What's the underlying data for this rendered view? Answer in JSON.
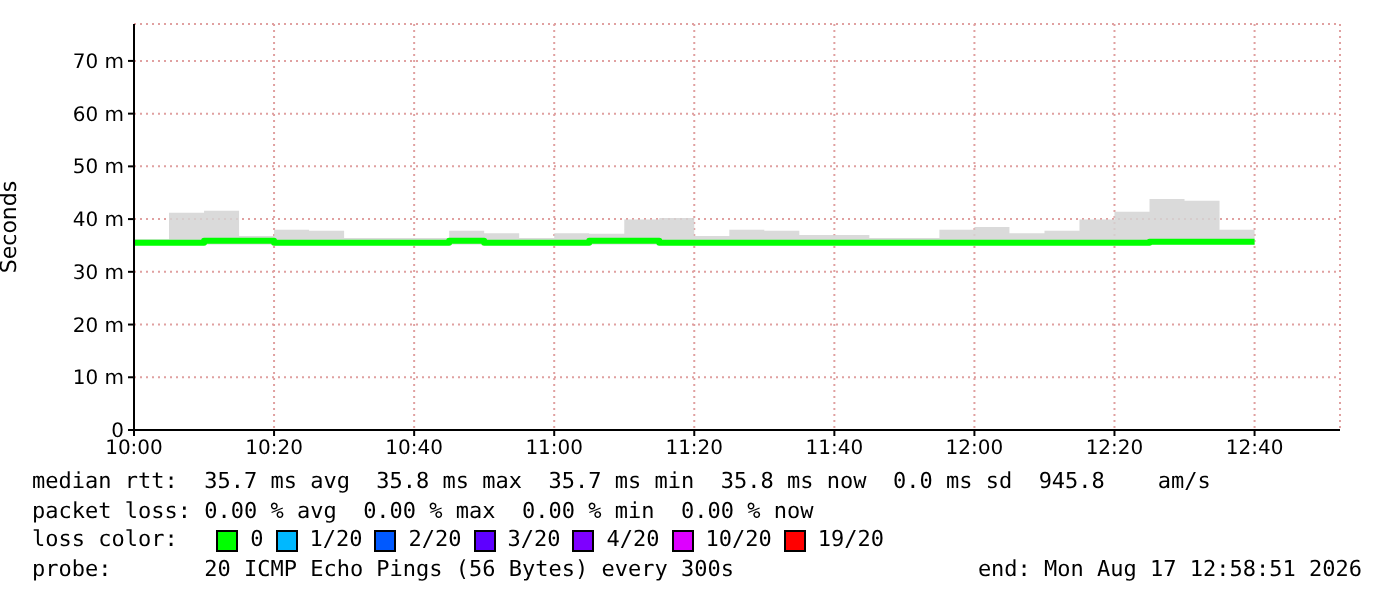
{
  "chart_data": {
    "type": "step",
    "ylabel": "Seconds",
    "x": [
      10,
      10.0833,
      10.1667,
      10.25,
      10.3333,
      10.4167,
      10.5,
      10.5833,
      10.6667,
      10.75,
      10.8333,
      10.9167,
      11,
      11.0833,
      11.1667,
      11.25,
      11.3333,
      11.4167,
      11.5,
      11.5833,
      11.6667,
      11.75,
      11.8333,
      11.9167,
      12,
      12.0833,
      12.1667,
      12.25,
      12.3333,
      12.4167,
      12.5,
      12.5833,
      12.6667
    ],
    "xlim": [
      10,
      12.87
    ],
    "xticks": [
      {
        "value": 10,
        "label": "10:00"
      },
      {
        "value": 10.3333,
        "label": "10:20"
      },
      {
        "value": 10.6667,
        "label": "10:40"
      },
      {
        "value": 11,
        "label": "11:00"
      },
      {
        "value": 11.3333,
        "label": "11:20"
      },
      {
        "value": 11.6667,
        "label": "11:40"
      },
      {
        "value": 12,
        "label": "12:00"
      },
      {
        "value": 12.3333,
        "label": "12:20"
      },
      {
        "value": 12.6667,
        "label": "12:40"
      }
    ],
    "ylim": [
      0,
      77
    ],
    "yticks": [
      0,
      {
        "value": 10,
        "label": "10 m"
      },
      {
        "value": 20,
        "label": "20 m"
      },
      {
        "value": 30,
        "label": "30 m"
      },
      {
        "value": 40,
        "label": "40 m"
      },
      {
        "value": 50,
        "label": "50 m"
      },
      {
        "value": 60,
        "label": "60 m"
      },
      {
        "value": 70,
        "label": "70 m"
      }
    ],
    "grid": true,
    "legend": "bottom",
    "legend_title": "loss color:",
    "series": [
      {
        "name": "0",
        "color": "#00ff00",
        "values": [
          35.5,
          35.5,
          35.9,
          35.9,
          35.5,
          35.5,
          35.5,
          35.5,
          35.5,
          35.9,
          35.5,
          35.5,
          35.5,
          35.9,
          35.9,
          35.5,
          35.5,
          35.5,
          35.5,
          35.5,
          35.5,
          35.5,
          35.5,
          35.5,
          35.5,
          35.5,
          35.5,
          35.5,
          35.5,
          35.7,
          35.7,
          35.7,
          35.7
        ],
        "lower": [
          35.2,
          35.2,
          35.2,
          35.2,
          35.2,
          35.2,
          35.2,
          35.2,
          35.2,
          35.2,
          35.2,
          35.2,
          35.2,
          35.2,
          35.2,
          35.2,
          35.2,
          35.2,
          35.2,
          35.2,
          35.2,
          35.2,
          35.2,
          35.2,
          35.2,
          35.2,
          35.2,
          35.2,
          35.2,
          35.2,
          35.2,
          35.2,
          35.2
        ],
        "upper": [
          36.2,
          41.2,
          41.6,
          36.8,
          38,
          37.8,
          36.4,
          36.4,
          36.4,
          37.8,
          37.3,
          36.4,
          37.3,
          37.2,
          39.9,
          40.2,
          36.8,
          38,
          37.8,
          37,
          37,
          36.4,
          36.4,
          38,
          38.5,
          37.3,
          37.8,
          39.9,
          41.4,
          43.8,
          43.5,
          38,
          53.7
        ]
      },
      {
        "name": "1/20",
        "color": "#00b8ff",
        "values": [
          null,
          null,
          null,
          null,
          null,
          null,
          null,
          null,
          null,
          null,
          null,
          null,
          null,
          null,
          null,
          null,
          null,
          null,
          null,
          null,
          null,
          null,
          null,
          null,
          null,
          null,
          null,
          null,
          null,
          null,
          null,
          null,
          null
        ]
      },
      {
        "name": "2/20",
        "color": "#0059ff",
        "values": [
          null,
          null,
          null,
          null,
          null,
          null,
          null,
          null,
          null,
          null,
          null,
          null,
          null,
          null,
          null,
          null,
          null,
          null,
          null,
          null,
          null,
          null,
          null,
          null,
          null,
          null,
          null,
          null,
          null,
          null,
          null,
          null,
          null
        ]
      },
      {
        "name": "3/20",
        "color": "#5e00ff",
        "values": [
          null,
          null,
          null,
          null,
          null,
          null,
          null,
          null,
          null,
          null,
          null,
          null,
          null,
          null,
          null,
          null,
          null,
          null,
          null,
          null,
          null,
          null,
          null,
          null,
          null,
          null,
          null,
          null,
          null,
          null,
          null,
          null,
          null
        ]
      },
      {
        "name": "4/20",
        "color": "#7e00ff",
        "values": [
          null,
          null,
          null,
          null,
          null,
          null,
          null,
          null,
          null,
          null,
          null,
          null,
          null,
          null,
          null,
          null,
          null,
          null,
          null,
          null,
          null,
          null,
          null,
          null,
          null,
          null,
          null,
          null,
          null,
          null,
          null,
          null,
          null
        ]
      },
      {
        "name": "10/20",
        "color": "#dd00ff",
        "values": [
          null,
          null,
          null,
          null,
          null,
          null,
          null,
          null,
          null,
          null,
          null,
          null,
          null,
          null,
          null,
          null,
          null,
          null,
          null,
          null,
          null,
          null,
          null,
          null,
          null,
          null,
          null,
          null,
          null,
          null,
          null,
          null,
          null
        ]
      },
      {
        "name": "19/20",
        "color": "#ff0000",
        "values": [
          null,
          null,
          null,
          null,
          null,
          null,
          null,
          null,
          null,
          null,
          null,
          null,
          null,
          null,
          null,
          null,
          null,
          null,
          null,
          null,
          null,
          null,
          null,
          null,
          null,
          null,
          null,
          null,
          null,
          null,
          null,
          null,
          null
        ]
      }
    ],
    "annotations": [
      "median rtt:  35.7 ms avg  35.8 ms max  35.7 ms min  35.8 ms now  0.0 ms sd  945.8    am/s",
      "packet loss: 0.00 % avg  0.00 % max  0.00 % min  0.00 % now",
      "probe:       20 ICMP Echo Pings (56 Bytes) every 300s",
      "end: Mon Aug 17 12:58:51 2026"
    ]
  }
}
